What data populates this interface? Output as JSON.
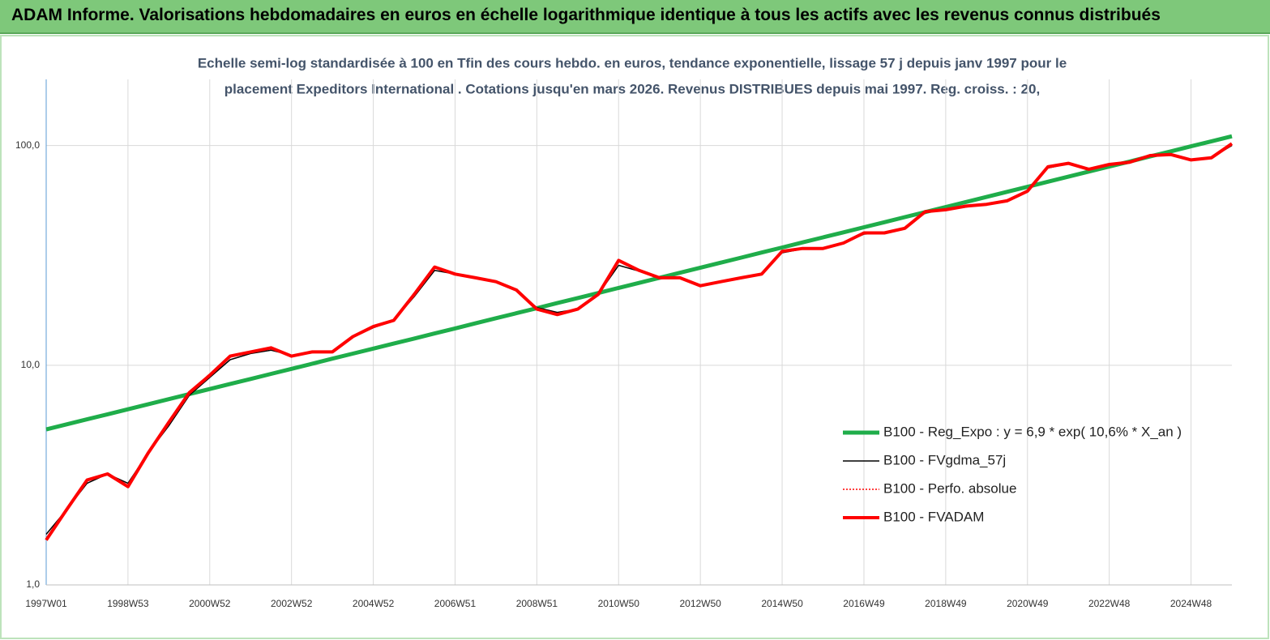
{
  "banner": "ADAM Informe. Valorisations hebdomadaires en euros en échelle logarithmique identique à tous les actifs avec les revenus connus distribués",
  "chart_data": {
    "type": "line",
    "subtitle": [
      "Echelle semi-log standardisée à 100 en Tfin des cours hebdo. en euros, tendance exponentielle, lissage 57 j depuis janv 1997 pour le",
      "placement Expeditors International . Cotations jusqu'en mars 2026. Revenus DISTRIBUES depuis mai 1997. Reg. croiss. : 20,"
    ],
    "categories": [
      "1997W01",
      null,
      null,
      null,
      "1998W53",
      null,
      null,
      null,
      "2000W52",
      null,
      null,
      null,
      "2002W52",
      null,
      null,
      null,
      "2004W52",
      null,
      null,
      null,
      "2006W51",
      null,
      null,
      null,
      "2008W51",
      null,
      null,
      null,
      "2010W50",
      null,
      null,
      null,
      "2012W50",
      null,
      null,
      null,
      "2014W50",
      null,
      null,
      null,
      "2016W49",
      null,
      null,
      null,
      "2018W49",
      null,
      null,
      null,
      "2020W49",
      null,
      null,
      null,
      "2022W48",
      null,
      null,
      null,
      "2024W48",
      null,
      null
    ],
    "log_scale": true,
    "grid": true,
    "legend": "lower right",
    "ylim": [
      1,
      200
    ],
    "yticks": [
      {
        "value": 1,
        "label": "1,0"
      },
      {
        "value": 10,
        "label": "10,0"
      },
      {
        "value": 100,
        "label": "100,0"
      }
    ],
    "series": [
      {
        "name": "B100 - Reg_Expo : y = 6,9 * exp( 10,6% *  X_an )",
        "color": "#1fad4a",
        "line_width": 5,
        "dashed": false,
        "values": [
          5.1,
          5.38,
          5.67,
          5.98,
          6.3,
          6.65,
          7.01,
          7.39,
          7.79,
          8.22,
          8.66,
          9.13,
          9.63,
          10.15,
          10.71,
          11.29,
          11.9,
          12.55,
          13.23,
          13.95,
          14.71,
          15.51,
          16.36,
          17.25,
          18.19,
          19.18,
          20.22,
          21.32,
          22.48,
          23.7,
          24.99,
          26.35,
          27.79,
          29.3,
          30.89,
          32.58,
          34.35,
          36.22,
          38.19,
          40.27,
          42.46,
          44.77,
          47.21,
          49.78,
          52.49,
          55.35,
          58.36,
          61.54,
          64.89,
          68.42,
          72.14,
          76.07,
          80.21,
          84.58,
          89.18,
          94.04,
          99.15,
          104.55,
          110.24
        ]
      },
      {
        "name": "B100 - FVgdma_57j",
        "color": "#000000",
        "line_width": 1.5,
        "dashed": false,
        "values": [
          1.7,
          2.2,
          2.9,
          3.2,
          2.9,
          4.0,
          5.3,
          7.3,
          8.8,
          10.6,
          11.3,
          11.7,
          11.1,
          11.4,
          11.5,
          13.4,
          14.8,
          16.0,
          20.5,
          27.0,
          26.0,
          25.0,
          23.8,
          21.8,
          18.3,
          17.4,
          18.0,
          21.0,
          28.5,
          26.8,
          25.0,
          24.8,
          23.2,
          24.0,
          24.8,
          26.0,
          32.5,
          33.8,
          34.0,
          36.0,
          39.5,
          40.0,
          42.0,
          49.5,
          51.0,
          52.5,
          54.0,
          55.5,
          62.0,
          79.0,
          82.5,
          78.5,
          82.0,
          84.0,
          89.5,
          90.5,
          86.5,
          88.0,
          100.0
        ]
      },
      {
        "name": "B100 - Perfo. absolue",
        "color": "#ff0000",
        "line_width": 1.5,
        "dashed": true,
        "values": [
          1.6,
          2.2,
          3.0,
          3.2,
          2.8,
          4.0,
          5.5,
          7.5,
          9.0,
          11.0,
          11.5,
          12.0,
          11.0,
          11.5,
          11.5,
          13.5,
          15.0,
          16.0,
          21.0,
          28.0,
          26.0,
          25.0,
          24.0,
          22.0,
          18.0,
          17.0,
          18.0,
          21.0,
          30.0,
          27.0,
          25.0,
          25.0,
          23.0,
          24.0,
          25.0,
          26.0,
          33.0,
          34.0,
          34.0,
          36.0,
          40.0,
          40.0,
          42.0,
          50.0,
          51.0,
          53.0,
          54.0,
          56.0,
          62.0,
          80.0,
          83.0,
          78.0,
          82.0,
          84.0,
          90.0,
          91.0,
          86.0,
          88.0,
          102.0
        ]
      },
      {
        "name": "B100 - FVADAM",
        "color": "#ff0000",
        "line_width": 4,
        "dashed": false,
        "values": [
          1.6,
          2.2,
          3.0,
          3.2,
          2.8,
          4.0,
          5.5,
          7.5,
          9.0,
          11.0,
          11.5,
          12.0,
          11.0,
          11.5,
          11.5,
          13.5,
          15.0,
          16.0,
          21.0,
          28.0,
          26.0,
          25.0,
          24.0,
          22.0,
          18.0,
          17.0,
          18.0,
          21.0,
          30.0,
          27.0,
          25.0,
          25.0,
          23.0,
          24.0,
          25.0,
          26.0,
          33.0,
          34.0,
          34.0,
          36.0,
          40.0,
          40.0,
          42.0,
          50.0,
          51.0,
          53.0,
          54.0,
          56.0,
          62.0,
          80.0,
          83.0,
          78.0,
          82.0,
          84.0,
          90.0,
          91.0,
          86.0,
          88.0,
          102.0
        ]
      }
    ]
  }
}
